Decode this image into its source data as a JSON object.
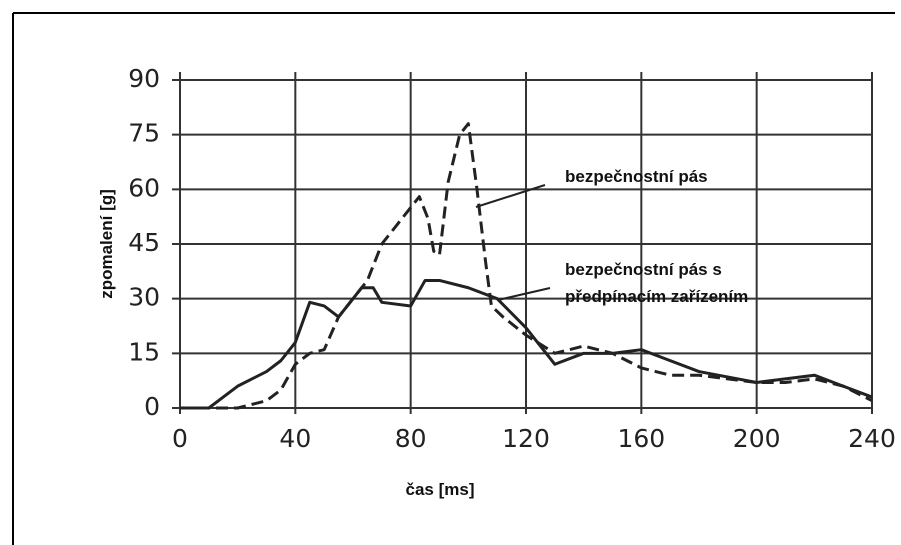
{
  "chart_data": {
    "type": "line",
    "xlabel": "čas [ms]",
    "ylabel": "zpomalení [g]",
    "xlim": [
      0,
      240
    ],
    "xticks": [
      0,
      40,
      80,
      120,
      160,
      200,
      240
    ],
    "ylim": [
      0,
      90
    ],
    "yticks": [
      0,
      15,
      30,
      45,
      60,
      75,
      90
    ],
    "grid": true,
    "series": [
      {
        "name": "bezpečnostní pás",
        "color": "#222222",
        "dash": true,
        "x": [
          0,
          10,
          20,
          30,
          35,
          40,
          45,
          50,
          55,
          60,
          65,
          70,
          75,
          80,
          83,
          86,
          88,
          90,
          93,
          97,
          100,
          103,
          106,
          108,
          112,
          120,
          130,
          140,
          150,
          160,
          170,
          180,
          200,
          210,
          220,
          230,
          240
        ],
        "values": [
          0,
          0,
          0,
          2,
          5,
          12,
          15,
          16,
          25,
          30,
          35,
          45,
          50,
          55,
          58,
          52,
          43,
          42,
          62,
          75,
          78,
          60,
          40,
          28,
          25,
          20,
          15,
          17,
          15,
          11,
          9,
          9,
          7,
          7,
          8,
          6,
          2
        ]
      },
      {
        "name": "bezpečnostní pás s předpínacím zařízením",
        "color": "#222222",
        "dash": false,
        "x": [
          0,
          10,
          15,
          20,
          25,
          30,
          35,
          40,
          45,
          50,
          55,
          60,
          63,
          67,
          70,
          80,
          85,
          90,
          100,
          110,
          120,
          130,
          140,
          150,
          160,
          170,
          180,
          200,
          220,
          230,
          240
        ],
        "values": [
          0,
          0,
          3,
          6,
          8,
          10,
          13,
          18,
          29,
          28,
          25,
          30,
          33,
          33,
          29,
          28,
          35,
          35,
          33,
          30,
          22,
          12,
          15,
          15,
          16,
          13,
          10,
          7,
          9,
          6,
          3
        ]
      }
    ]
  }
}
